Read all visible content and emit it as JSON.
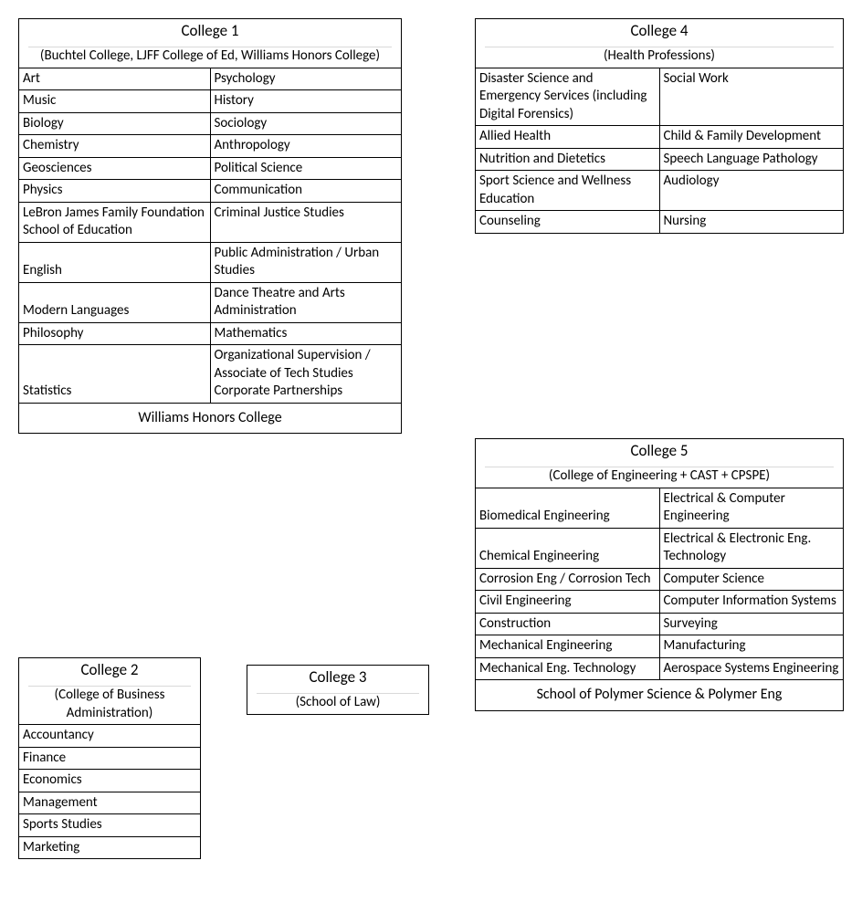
{
  "college1": {
    "title": "College 1",
    "subtitle": "(Buchtel College, LJFF College of Ed, Williams Honors College)",
    "rows": [
      [
        "Art",
        "Psychology"
      ],
      [
        "Music",
        "History"
      ],
      [
        "Biology",
        "Sociology"
      ],
      [
        "Chemistry",
        "Anthropology"
      ],
      [
        "Geosciences",
        "Political Science"
      ],
      [
        "Physics",
        "Communication"
      ],
      [
        "LeBron James Family Foundation School of Education",
        "Criminal Justice Studies"
      ],
      [
        "English",
        "Public Administration / Urban Studies"
      ],
      [
        "Modern Languages",
        "Dance Theatre and Arts Administration"
      ],
      [
        "Philosophy",
        "Mathematics"
      ],
      [
        "Statistics",
        "Organizational Supervision / Associate of Tech Studies Corporate Partnerships"
      ]
    ],
    "footer": "Williams Honors College"
  },
  "college2": {
    "title": "College 2",
    "subtitle": "(College of Business Administration)",
    "rows": [
      [
        "Accountancy"
      ],
      [
        "Finance"
      ],
      [
        "Economics"
      ],
      [
        "Management"
      ],
      [
        "Sports Studies"
      ],
      [
        "Marketing"
      ]
    ]
  },
  "college3": {
    "title": "College 3",
    "subtitle": "(School of Law)"
  },
  "college4": {
    "title": "College 4",
    "subtitle": "(Health Professions)",
    "rows": [
      [
        "Disaster Science and Emergency Services (including Digital Forensics)",
        "Social Work"
      ],
      [
        "Allied Health",
        "Child & Family Development"
      ],
      [
        "Nutrition and Dietetics",
        "Speech Language Pathology"
      ],
      [
        "Sport Science and Wellness Education",
        "Audiology"
      ],
      [
        "Counseling",
        "Nursing"
      ]
    ]
  },
  "college5": {
    "title": "College 5",
    "subtitle": "(College of Engineering + CAST + CPSPE)",
    "rows": [
      [
        "Biomedical Engineering",
        "Electrical & Computer Engineering"
      ],
      [
        "Chemical Engineering",
        "Electrical & Electronic Eng. Technology"
      ],
      [
        "Corrosion Eng / Corrosion Tech",
        "Computer Science"
      ],
      [
        "Civil Engineering",
        "Computer Information Systems"
      ],
      [
        "Construction",
        "Surveying"
      ],
      [
        "Mechanical Engineering",
        "Manufacturing"
      ],
      [
        "Mechanical Eng. Technology",
        "Aerospace Systems Engineering"
      ]
    ],
    "footer": "School of Polymer Science & Polymer Eng"
  }
}
